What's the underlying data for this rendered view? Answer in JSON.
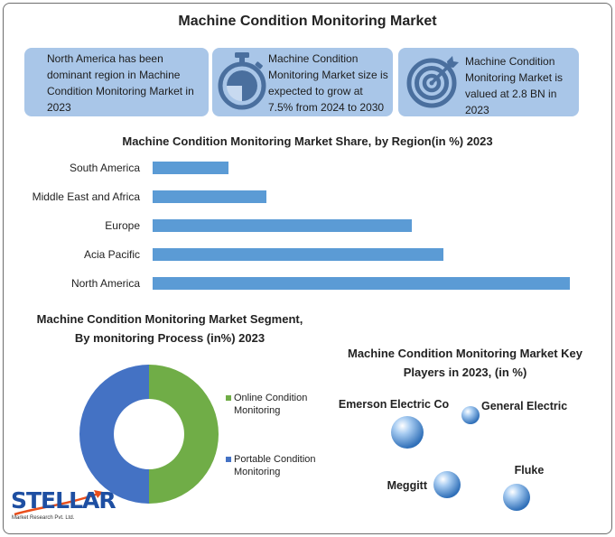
{
  "title": "Machine Condition Monitoring Market",
  "cards": [
    {
      "text": "North America has been dominant region in Machine Condition Monitoring Market in 2023",
      "icon": "none"
    },
    {
      "text": "Machine Condition Monitoring Market size is expected to grow at 7.5% from 2024 to 2030",
      "icon": "stopwatch-icon"
    },
    {
      "text": "Machine Condition Monitoring Market is valued at 2.8 BN in 2023",
      "icon": "target-icon"
    }
  ],
  "colors": {
    "card_bg": "#a9c6e8",
    "bar": "#5b9bd5",
    "online": "#70ad47",
    "portable": "#4472c4",
    "logo": "#1e4fa2",
    "bubble": "#4a8fd6"
  },
  "chart_data": [
    {
      "type": "bar",
      "orientation": "horizontal",
      "title": "Machine Condition Monitoring Market Share, by Region(in %) 2023",
      "categories": [
        "South America",
        "Middle East and Africa",
        "Europe",
        "Acia Pacific",
        "North America"
      ],
      "values": [
        6,
        9,
        20.5,
        23,
        33
      ],
      "xlim": [
        0,
        35
      ],
      "grid": false,
      "legend": "none"
    },
    {
      "type": "pie",
      "variant": "donut",
      "title": "Machine Condition Monitoring Market Segment, By monitoring Process (in%) 2023",
      "categories": [
        "Online Condition Monitoring",
        "Portable Condition Monitoring"
      ],
      "values": [
        50,
        50
      ],
      "legend": "right"
    },
    {
      "type": "scatter",
      "variant": "bubble",
      "title": "Machine Condition Monitoring Market Key Players in 2023, (in %)",
      "labels": [
        "Emerson Electric Co",
        "General Electric",
        "Meggitt",
        "Fluke"
      ],
      "values": [
        18,
        10,
        15,
        15
      ]
    }
  ],
  "logo": {
    "word": "STELLAR",
    "sub": "Market Research Pvt. Ltd."
  }
}
